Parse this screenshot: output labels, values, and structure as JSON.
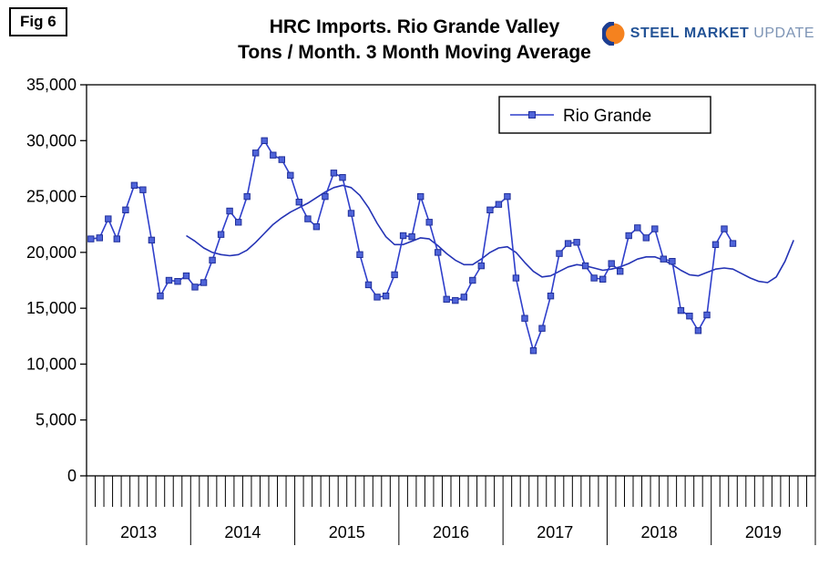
{
  "fig_label": "Fig 6",
  "title": {
    "line1": "HRC Imports. Rio Grande Valley",
    "line2": "Tons / Month. 3 Month Moving Average"
  },
  "logo": {
    "steel": "STEEL",
    "market": "MARKET",
    "update": "UPDATE"
  },
  "colors": {
    "axis": "#000000",
    "series_line": "#2f3fcb",
    "marker_fill": "#4f64d9",
    "marker_stroke": "#202f9a",
    "moving_avg": "#2433b5",
    "legend_border": "#000000",
    "logo_orange": "#f5821f",
    "logo_blue": "#1d3e91"
  },
  "chart_data": {
    "type": "line",
    "title": "HRC Imports. Rio Grande Valley — Tons / Month. 3 Month Moving Average",
    "xlabel": "",
    "ylabel": "Tons / Month",
    "ylim": [
      0,
      35000
    ],
    "ytick_step": 5000,
    "ytick_labels": [
      "0",
      "5,000",
      "10,000",
      "15,000",
      "20,000",
      "25,000",
      "30,000",
      "35,000"
    ],
    "grid": false,
    "legend_position": "top-center",
    "x_unit": "month",
    "x_start": "2013-01",
    "years": [
      "2013",
      "2014",
      "2015",
      "2016",
      "2017",
      "2018",
      "2019"
    ],
    "series": [
      {
        "name": "Rio Grande",
        "marker": "square",
        "start_index": 0,
        "values": [
          21200,
          21300,
          23000,
          21200,
          23800,
          26000,
          25600,
          21100,
          16100,
          17500,
          17400,
          17900,
          16900,
          17300,
          19300,
          21600,
          23700,
          22700,
          25000,
          28900,
          30000,
          28700,
          28300,
          26900,
          24500,
          23000,
          22300,
          25000,
          27100,
          26700,
          23500,
          19800,
          17100,
          16000,
          16100,
          18000,
          21500,
          21400,
          25000,
          22700,
          20000,
          15800,
          15700,
          16000,
          17500,
          18800,
          23800,
          24300,
          25000,
          17700,
          14100,
          11200,
          13200,
          16100,
          19900,
          20800,
          20900,
          18800,
          17700,
          17600,
          19000,
          18300,
          21500,
          22200,
          21300,
          22100,
          19400,
          19200,
          14800,
          14300,
          13000,
          14400,
          20700,
          22100,
          20800
        ]
      },
      {
        "name": "3 Month Moving Average",
        "marker": "none",
        "start_index": 11,
        "values": [
          21500,
          21000,
          20400,
          20000,
          19800,
          19700,
          19800,
          20200,
          20900,
          21700,
          22500,
          23100,
          23600,
          24000,
          24400,
          24900,
          25400,
          25800,
          26000,
          25800,
          25100,
          24000,
          22600,
          21400,
          20700,
          20700,
          21000,
          21300,
          21200,
          20600,
          19900,
          19300,
          18900,
          18900,
          19400,
          20000,
          20400,
          20500,
          20000,
          19100,
          18300,
          17800,
          17900,
          18300,
          18700,
          18900,
          18800,
          18600,
          18400,
          18500,
          18700,
          19000,
          19400,
          19600,
          19600,
          19300,
          18900,
          18400,
          18000,
          17900,
          18200,
          18500,
          18600,
          18500,
          18100,
          17700,
          17400,
          17300,
          17800,
          19200,
          21100
        ]
      }
    ]
  }
}
